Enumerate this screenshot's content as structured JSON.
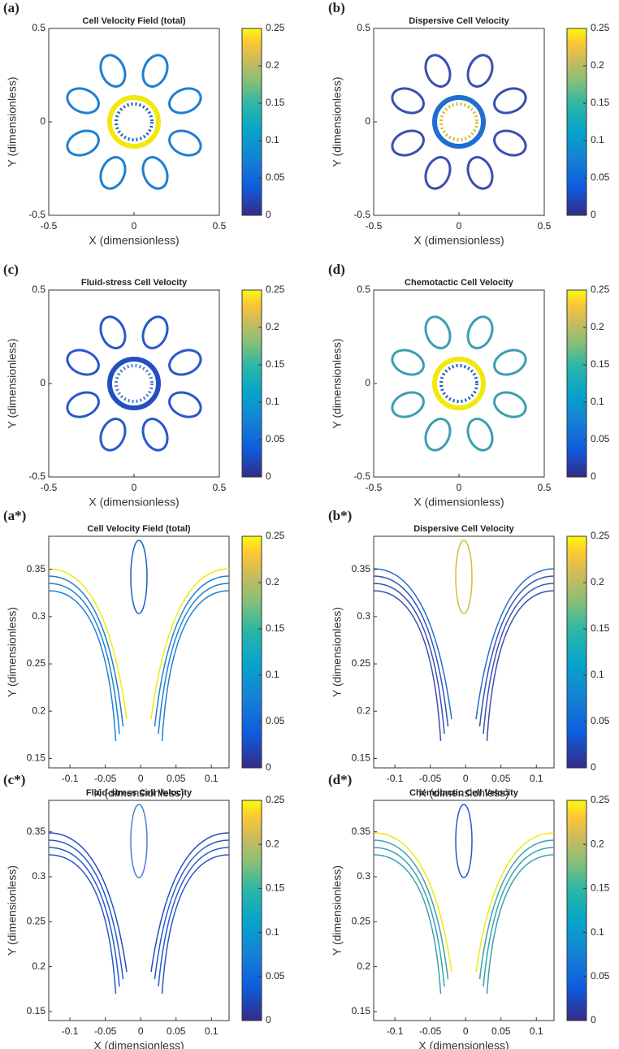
{
  "chart_data": [
    {
      "type": "contour",
      "panel": "(a)",
      "title": "Cell Velocity Field (total)",
      "xlabel": "X (dimensionless)",
      "ylabel": "Y (dimensionless)",
      "xlim": [
        -0.5,
        0.5
      ],
      "ylim": [
        -0.5,
        0.5
      ],
      "xticks": [
        -0.5,
        0,
        0.5
      ],
      "yticks": [
        -0.5,
        0,
        0.5
      ],
      "clim": [
        0,
        0.25
      ],
      "cticks": [
        0,
        0.05,
        0.1,
        0.15,
        0.2,
        0.25
      ]
    },
    {
      "type": "contour",
      "panel": "(b)",
      "title": "Dispersive Cell Velocity",
      "xlabel": "X (dimensionless)",
      "ylabel": "Y (dimensionless)",
      "xlim": [
        -0.5,
        0.5
      ],
      "ylim": [
        -0.5,
        0.5
      ],
      "xticks": [
        -0.5,
        0,
        0.5
      ],
      "yticks": [
        -0.5,
        0,
        0.5
      ],
      "clim": [
        0,
        0.25
      ],
      "cticks": [
        0,
        0.05,
        0.1,
        0.15,
        0.2,
        0.25
      ]
    },
    {
      "type": "contour",
      "panel": "(c)",
      "title": "Fluid-stress Cell Velocity",
      "xlabel": "X (dimensionless)",
      "ylabel": "Y (dimensionless)",
      "xlim": [
        -0.5,
        0.5
      ],
      "ylim": [
        -0.5,
        0.5
      ],
      "xticks": [
        -0.5,
        0,
        0.5
      ],
      "yticks": [
        -0.5,
        0,
        0.5
      ],
      "clim": [
        0,
        0.25
      ],
      "cticks": [
        0,
        0.05,
        0.1,
        0.15,
        0.2,
        0.25
      ]
    },
    {
      "type": "contour",
      "panel": "(d)",
      "title": "Chemotactic Cell Velocity",
      "xlabel": "X (dimensionless)",
      "ylabel": "Y (dimensionless)",
      "xlim": [
        -0.5,
        0.5
      ],
      "ylim": [
        -0.5,
        0.5
      ],
      "xticks": [
        -0.5,
        0,
        0.5
      ],
      "yticks": [
        -0.5,
        0,
        0.5
      ],
      "clim": [
        0,
        0.25
      ],
      "cticks": [
        0,
        0.05,
        0.1,
        0.15,
        0.2,
        0.25
      ]
    },
    {
      "type": "contour",
      "panel": "(a*)",
      "title": "Cell Velocity Field (total)",
      "xlabel": "X (dimensionless)",
      "ylabel": "Y (dimensionless)",
      "xlim": [
        -0.13,
        0.125
      ],
      "ylim": [
        0.14,
        0.385
      ],
      "xticks": [
        -0.1,
        -0.05,
        0,
        0.05,
        0.1
      ],
      "yticks": [
        0.15,
        0.2,
        0.25,
        0.3,
        0.35
      ],
      "clim": [
        0,
        0.25
      ],
      "cticks": [
        0,
        0.05,
        0.1,
        0.15,
        0.2,
        0.25
      ]
    },
    {
      "type": "contour",
      "panel": "(b*)",
      "title": "Dispersive Cell Velocity",
      "xlabel": "X (dimensionless)",
      "ylabel": "Y (dimensionless)",
      "xlim": [
        -0.13,
        0.125
      ],
      "ylim": [
        0.14,
        0.385
      ],
      "xticks": [
        -0.1,
        -0.05,
        0,
        0.05,
        0.1
      ],
      "yticks": [
        0.15,
        0.2,
        0.25,
        0.3,
        0.35
      ],
      "clim": [
        0,
        0.25
      ],
      "cticks": [
        0,
        0.05,
        0.1,
        0.15,
        0.2,
        0.25
      ]
    },
    {
      "type": "contour",
      "panel": "(c*)",
      "title": "Fluid-stress Cell Velocity",
      "xlabel": "X (dimensionless)",
      "ylabel": "Y (dimensionless)",
      "xlim": [
        -0.13,
        0.125
      ],
      "ylim": [
        0.14,
        0.385
      ],
      "xticks": [
        -0.1,
        -0.05,
        0,
        0.05,
        0.1
      ],
      "yticks": [
        0.15,
        0.2,
        0.25,
        0.3,
        0.35
      ],
      "clim": [
        0,
        0.25
      ],
      "cticks": [
        0,
        0.05,
        0.1,
        0.15,
        0.2,
        0.25
      ]
    },
    {
      "type": "contour",
      "panel": "(d*)",
      "title": "Chemotactic Cell Velocity",
      "xlabel": "X (dimensionless)",
      "ylabel": "Y (dimensionless)",
      "xlim": [
        -0.13,
        0.125
      ],
      "ylim": [
        0.14,
        0.385
      ],
      "xticks": [
        -0.1,
        -0.05,
        0,
        0.05,
        0.1
      ],
      "yticks": [
        0.15,
        0.2,
        0.25,
        0.3,
        0.35
      ],
      "clim": [
        0,
        0.25
      ],
      "cticks": [
        0,
        0.05,
        0.1,
        0.15,
        0.2,
        0.25
      ]
    }
  ]
}
